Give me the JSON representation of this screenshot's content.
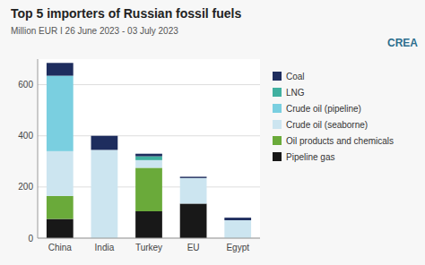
{
  "chart_data": {
    "type": "bar",
    "stacked": true,
    "title": "Top 5 importers of Russian fossil fuels",
    "subtitle": "Million EUR I 26 June 2023 - 03 July 2023",
    "annotations": [
      "CREA"
    ],
    "categories": [
      "China",
      "India",
      "Turkey",
      "EU",
      "Egypt"
    ],
    "series": [
      {
        "name": "Pipeline gas",
        "color": "#181818",
        "values": [
          75,
          0,
          105,
          135,
          0
        ]
      },
      {
        "name": "Oil products and chemicals",
        "color": "#6aaa3a",
        "values": [
          90,
          0,
          170,
          0,
          0
        ]
      },
      {
        "name": "Crude oil (seaborne)",
        "color": "#cce5f0",
        "values": [
          175,
          345,
          30,
          100,
          70
        ]
      },
      {
        "name": "Crude oil (pipeline)",
        "color": "#7acfe0",
        "values": [
          295,
          0,
          0,
          0,
          0
        ]
      },
      {
        "name": "LNG",
        "color": "#40b0a0",
        "values": [
          0,
          0,
          15,
          0,
          0
        ]
      },
      {
        "name": "Coal",
        "color": "#1e2d5e",
        "values": [
          50,
          55,
          10,
          5,
          10
        ]
      }
    ],
    "ylim": [
      0,
      700
    ],
    "yticks": [
      0,
      200,
      400,
      600
    ],
    "grid": true,
    "legend": "right"
  }
}
